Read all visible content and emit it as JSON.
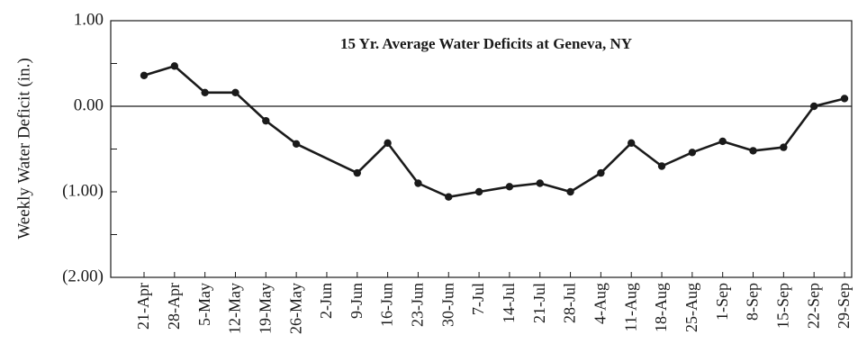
{
  "chart_data": {
    "type": "line",
    "title": "15 Yr. Average Water Deficits at Geneva, NY",
    "y_label": "Weekly Water Deficit (in.)",
    "categories": [
      "21-Apr",
      "28-Apr",
      "5-May",
      "12-May",
      "19-May",
      "26-May",
      "2-Jun",
      "9-Jun",
      "16-Jun",
      "23-Jun",
      "30-Jun",
      "7-Jul",
      "14-Jul",
      "21-Jul",
      "28-Jul",
      "4-Aug",
      "11-Aug",
      "18-Aug",
      "25-Aug",
      "1-Sep",
      "8-Sep",
      "15-Sep",
      "22-Sep",
      "29-Sep"
    ],
    "values": [
      0.36,
      0.47,
      0.16,
      0.16,
      -0.17,
      -0.44,
      null,
      -0.78,
      -0.43,
      -0.9,
      -1.06,
      -1.0,
      -0.94,
      -0.9,
      -1.0,
      -0.78,
      -0.43,
      -0.7,
      -0.54,
      -0.41,
      -0.52,
      -0.48,
      0.0,
      0.09
    ],
    "color": "#1a1a1a",
    "ylim": [
      -2,
      1
    ],
    "yticks": [
      {
        "value": 1,
        "label": "1.00"
      },
      {
        "value": 0,
        "label": "0.00"
      },
      {
        "value": -1,
        "label": "(1.00)"
      },
      {
        "value": -2,
        "label": "(2.00)"
      }
    ],
    "yminor_ticks": [
      0.5,
      -0.5,
      -1.5
    ],
    "zero_line": true
  }
}
